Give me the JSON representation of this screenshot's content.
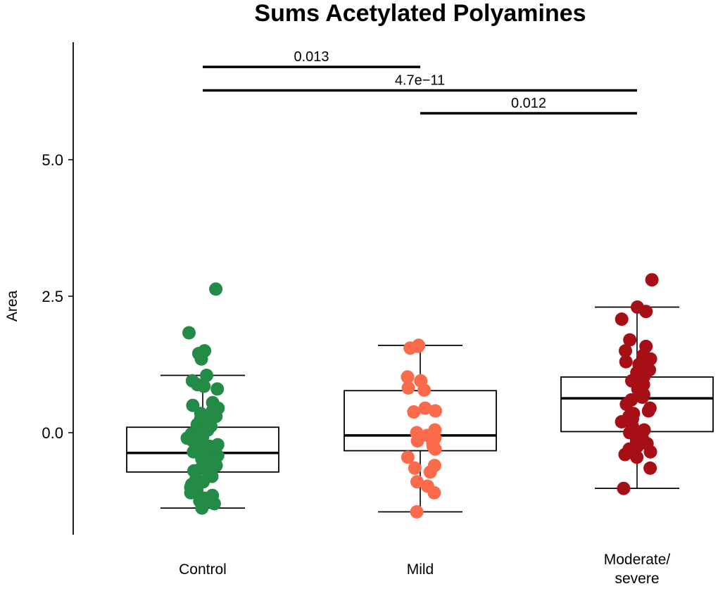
{
  "chart_data": {
    "type": "boxplot",
    "title": "Sums Acetylated Polyamines",
    "xlabel": "",
    "ylabel": "Area",
    "ylim": [
      -1.9,
      7.1
    ],
    "yticks": [
      0.0,
      2.5,
      5.0
    ],
    "ytick_labels": [
      "0.0",
      "2.5",
      "5.0"
    ],
    "categories": [
      "Control",
      "Mild",
      "Moderate/\nsevere"
    ],
    "category_lines": [
      [
        "Control"
      ],
      [
        "Mild"
      ],
      [
        "Moderate/",
        "severe"
      ]
    ],
    "colors": [
      "#238b45",
      "#fb6a4a",
      "#a50f15"
    ],
    "boxes": [
      {
        "q1": -0.72,
        "median": -0.37,
        "q3": 0.1,
        "whisker_low": -1.38,
        "whisker_high": 1.05
      },
      {
        "q1": -0.33,
        "median": -0.05,
        "q3": 0.77,
        "whisker_low": -1.45,
        "whisker_high": 1.6
      },
      {
        "q1": 0.02,
        "median": 0.63,
        "q3": 1.02,
        "whisker_low": -1.02,
        "whisker_high": 2.3
      }
    ],
    "points": [
      [
        2.63,
        1.83,
        1.5,
        1.45,
        1.35,
        1.05,
        0.95,
        0.88,
        0.85,
        0.8,
        0.55,
        0.5,
        0.45,
        0.4,
        0.35,
        0.3,
        0.25,
        0.2,
        0.15,
        0.12,
        0.08,
        0.05,
        0.02,
        -0.02,
        -0.05,
        -0.08,
        -0.1,
        -0.14,
        -0.18,
        -0.22,
        -0.25,
        -0.28,
        -0.32,
        -0.35,
        -0.38,
        -0.42,
        -0.45,
        -0.48,
        -0.52,
        -0.56,
        -0.6,
        -0.65,
        -0.7,
        -0.75,
        -0.8,
        -0.85,
        -0.9,
        -0.95,
        -1.0,
        -1.05,
        -1.1,
        -1.15,
        -1.2,
        -1.25,
        -1.3,
        -1.38
      ],
      [
        1.6,
        1.58,
        1.55,
        1.02,
        0.95,
        0.82,
        0.78,
        0.45,
        0.4,
        0.38,
        0.05,
        0.0,
        -0.05,
        -0.1,
        -0.15,
        -0.2,
        -0.25,
        -0.3,
        -0.45,
        -0.6,
        -0.65,
        -0.72,
        -0.9,
        -0.98,
        -1.1,
        -1.45
      ],
      [
        2.8,
        2.3,
        2.22,
        2.08,
        1.7,
        1.58,
        1.5,
        1.42,
        1.35,
        1.3,
        1.25,
        1.2,
        1.15,
        1.1,
        1.02,
        0.95,
        0.88,
        0.8,
        0.75,
        0.7,
        0.65,
        0.6,
        0.52,
        0.45,
        0.4,
        0.35,
        0.3,
        0.25,
        0.2,
        0.12,
        0.05,
        0.0,
        -0.05,
        -0.1,
        -0.15,
        -0.2,
        -0.25,
        -0.3,
        -0.35,
        -0.4,
        -0.45,
        -0.65,
        -1.02
      ]
    ],
    "comparisons": [
      {
        "from": 0,
        "to": 1,
        "label": "0.013",
        "y": 6.7
      },
      {
        "from": 0,
        "to": 2,
        "label": "4.7e−11",
        "y": 6.27
      },
      {
        "from": 1,
        "to": 2,
        "label": "0.012",
        "y": 5.85
      }
    ]
  }
}
